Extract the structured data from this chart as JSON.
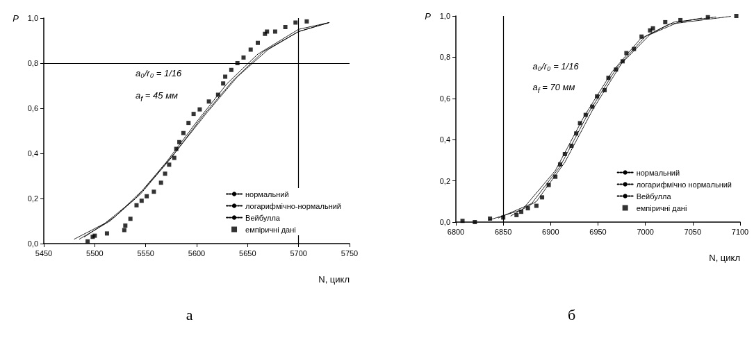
{
  "chart_data": [
    {
      "type": "scatter",
      "title": "а",
      "xlabel": "N, цикл",
      "ylabel": "P",
      "annotations": [
        "a₀/r₀ = 1/16",
        "a$_{f}$ = 45 мм"
      ],
      "xlim": [
        5450,
        5750
      ],
      "xticks": [
        5450,
        5500,
        5550,
        5600,
        5650,
        5700,
        5750
      ],
      "ylim": [
        0,
        1
      ],
      "yticks": [
        {
          "value": 0,
          "label": "0,0"
        },
        {
          "value": 0.2,
          "label": "0,2"
        },
        {
          "value": 0.4,
          "label": "0,4"
        },
        {
          "value": 0.6,
          "label": "0,6"
        },
        {
          "value": 0.8,
          "label": "0,8"
        },
        {
          "value": 1,
          "label": "1,0"
        }
      ],
      "grid": false,
      "legend": "bottom right",
      "ref_lines": [
        {
          "axis": "y",
          "value": 0.8
        },
        {
          "axis": "x",
          "value": 5700
        }
      ],
      "series": [
        {
          "name": "нормальний",
          "type": "line",
          "color": "#000000",
          "line_style": "dotted",
          "marker": "none",
          "x": [
            5480,
            5510,
            5540,
            5570,
            5600,
            5630,
            5660,
            5700,
            5730
          ],
          "values": [
            0.02,
            0.09,
            0.2,
            0.36,
            0.54,
            0.71,
            0.84,
            0.95,
            0.98
          ]
        },
        {
          "name": "логарифмічно-нормальний",
          "type": "line",
          "color": "#000000",
          "line_style": "dotted",
          "marker": "none",
          "x": [
            5485,
            5515,
            5545,
            5575,
            5605,
            5635,
            5665,
            5700,
            5730
          ],
          "values": [
            0.02,
            0.1,
            0.22,
            0.38,
            0.56,
            0.72,
            0.85,
            0.94,
            0.98
          ]
        },
        {
          "name": "Вейбулла",
          "type": "line",
          "color": "#000000",
          "line_style": "dotted",
          "marker": "none",
          "x": [
            5490,
            5520,
            5550,
            5580,
            5610,
            5640,
            5670,
            5700,
            5730
          ],
          "values": [
            0.03,
            0.12,
            0.25,
            0.41,
            0.58,
            0.74,
            0.86,
            0.94,
            0.98
          ]
        },
        {
          "name": "емпіричні дані",
          "type": "scatter",
          "color": "#000000",
          "marker": "square",
          "x": [
            5493,
            5498,
            5500,
            5512,
            5529,
            5530,
            5535,
            5541,
            5546,
            5551,
            5558,
            5565,
            5569,
            5573,
            5578,
            5580,
            5583,
            5587,
            5592,
            5597,
            5603,
            5612,
            5621,
            5626,
            5628,
            5634,
            5640,
            5646,
            5653,
            5660,
            5667,
            5669,
            5677,
            5687,
            5697,
            5708
          ],
          "values": [
            0.01,
            0.03,
            0.035,
            0.045,
            0.06,
            0.08,
            0.11,
            0.17,
            0.19,
            0.21,
            0.23,
            0.27,
            0.31,
            0.35,
            0.38,
            0.42,
            0.45,
            0.49,
            0.535,
            0.575,
            0.595,
            0.63,
            0.66,
            0.71,
            0.74,
            0.77,
            0.8,
            0.825,
            0.86,
            0.89,
            0.93,
            0.94,
            0.94,
            0.96,
            0.98,
            0.985
          ]
        }
      ]
    },
    {
      "type": "scatter",
      "title": "б",
      "xlabel": "N, цикл",
      "ylabel": "P",
      "annotations": [
        "a₀/r₀ = 1/16",
        "a$_{f}$ = 70 мм"
      ],
      "xlim": [
        6800,
        7100
      ],
      "xticks": [
        6800,
        6850,
        6900,
        6950,
        7000,
        7050,
        7100
      ],
      "ylim": [
        0,
        1
      ],
      "yticks": [
        {
          "value": 0,
          "label": "0,0"
        },
        {
          "value": 0.2,
          "label": "0,2"
        },
        {
          "value": 0.4,
          "label": "0,4"
        },
        {
          "value": 0.6,
          "label": "0,6"
        },
        {
          "value": 0.8,
          "label": "0,8"
        },
        {
          "value": 1,
          "label": "1,0"
        }
      ],
      "grid": false,
      "legend": "bottom right",
      "ref_lines": [
        {
          "axis": "x",
          "value": 6850
        }
      ],
      "series": [
        {
          "name": "нормальний",
          "type": "line",
          "color": "#000000",
          "line_style": "dotted",
          "marker": "none",
          "x": [
            6845,
            6880,
            6910,
            6940,
            6970,
            7000,
            7030,
            7075
          ],
          "values": [
            0.02,
            0.09,
            0.27,
            0.53,
            0.75,
            0.9,
            0.97,
            0.995
          ]
        },
        {
          "name": "логарифмічно нормальний",
          "type": "line",
          "color": "#000000",
          "line_style": "dotted",
          "marker": "none",
          "x": [
            6858,
            6885,
            6915,
            6945,
            6975,
            7005,
            7035,
            7060
          ],
          "values": [
            0.03,
            0.1,
            0.29,
            0.55,
            0.77,
            0.91,
            0.97,
            0.99
          ]
        },
        {
          "name": "Вейбулла",
          "type": "line",
          "color": "#000000",
          "line_style": "dotted",
          "marker": "none",
          "x": [
            6835,
            6870,
            6905,
            6935,
            6965,
            6995,
            7025,
            7090
          ],
          "values": [
            0.01,
            0.06,
            0.25,
            0.51,
            0.73,
            0.89,
            0.96,
            0.998
          ]
        },
        {
          "name": "емпіричні дані",
          "type": "scatter",
          "color": "#000000",
          "marker": "square",
          "x": [
            6807,
            6820,
            6836,
            6850,
            6864,
            6869,
            6876,
            6885,
            6891,
            6898,
            6905,
            6910,
            6915,
            6922,
            6927,
            6931,
            6937,
            6944,
            6949,
            6957,
            6961,
            6969,
            6976,
            6980,
            6988,
            6996,
            7005,
            7008,
            7021,
            7037,
            7066,
            7096
          ],
          "values": [
            0.006,
            0,
            0.017,
            0.022,
            0.034,
            0.05,
            0.067,
            0.079,
            0.12,
            0.18,
            0.22,
            0.28,
            0.33,
            0.37,
            0.43,
            0.48,
            0.52,
            0.56,
            0.61,
            0.64,
            0.7,
            0.74,
            0.78,
            0.82,
            0.84,
            0.9,
            0.93,
            0.94,
            0.97,
            0.98,
            0.994,
            1
          ]
        }
      ]
    }
  ]
}
